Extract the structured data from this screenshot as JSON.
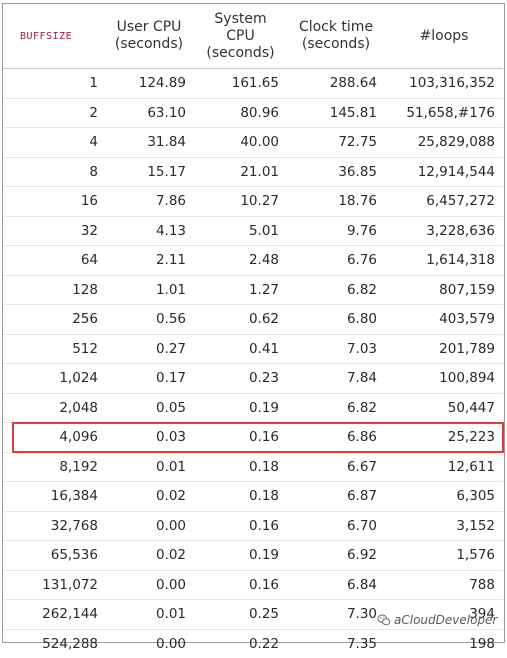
{
  "table": {
    "headers": [
      {
        "line1": "BUFFSIZE",
        "line2": ""
      },
      {
        "line1": "User CPU",
        "line2": "(seconds)"
      },
      {
        "line1": "System",
        "line2": "CPU",
        "line3": "(seconds)"
      },
      {
        "line1": "Clock time",
        "line2": "(seconds)"
      },
      {
        "line1": "#loops",
        "line2": ""
      }
    ],
    "rows": [
      [
        "1",
        "124.89",
        "161.65",
        "288.64",
        "103,316,352"
      ],
      [
        "2",
        "63.10",
        "80.96",
        "145.81",
        "51,658,#176"
      ],
      [
        "4",
        "31.84",
        "40.00",
        "72.75",
        "25,829,088"
      ],
      [
        "8",
        "15.17",
        "21.01",
        "36.85",
        "12,914,544"
      ],
      [
        "16",
        "7.86",
        "10.27",
        "18.76",
        "6,457,272"
      ],
      [
        "32",
        "4.13",
        "5.01",
        "9.76",
        "3,228,636"
      ],
      [
        "64",
        "2.11",
        "2.48",
        "6.76",
        "1,614,318"
      ],
      [
        "128",
        "1.01",
        "1.27",
        "6.82",
        "807,159"
      ],
      [
        "256",
        "0.56",
        "0.62",
        "6.80",
        "403,579"
      ],
      [
        "512",
        "0.27",
        "0.41",
        "7.03",
        "201,789"
      ],
      [
        "1,024",
        "0.17",
        "0.23",
        "7.84",
        "100,894"
      ],
      [
        "2,048",
        "0.05",
        "0.19",
        "6.82",
        "50,447"
      ],
      [
        "4,096",
        "0.03",
        "0.16",
        "6.86",
        "25,223"
      ],
      [
        "8,192",
        "0.01",
        "0.18",
        "6.67",
        "12,611"
      ],
      [
        "16,384",
        "0.02",
        "0.18",
        "6.87",
        "6,305"
      ],
      [
        "32,768",
        "0.00",
        "0.16",
        "6.70",
        "3,152"
      ],
      [
        "65,536",
        "0.02",
        "0.19",
        "6.92",
        "1,576"
      ],
      [
        "131,072",
        "0.00",
        "0.16",
        "6.84",
        "788"
      ],
      [
        "262,144",
        "0.01",
        "0.25",
        "7.30",
        "394"
      ],
      [
        "524,288",
        "0.00",
        "0.22",
        "7.35",
        "198"
      ]
    ],
    "highlighted_row": "4,096"
  },
  "watermark": {
    "text": "aCloudDeveloper",
    "icon": "wechat-icon"
  },
  "colors": {
    "highlight": "#e23d3d",
    "buffsize_header": "#9b1b4e"
  }
}
